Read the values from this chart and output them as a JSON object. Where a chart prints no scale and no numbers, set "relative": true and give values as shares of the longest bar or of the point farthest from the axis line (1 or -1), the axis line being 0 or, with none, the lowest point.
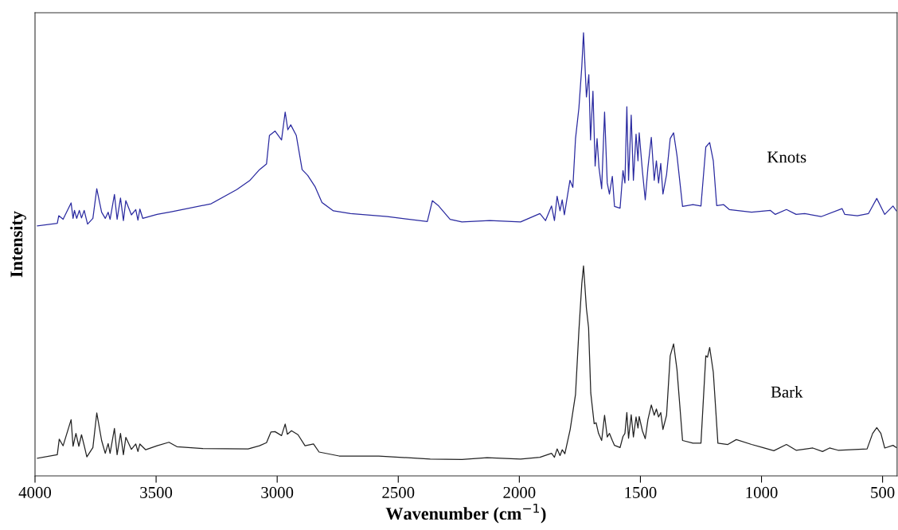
{
  "chart_data": {
    "type": "line",
    "relative": true,
    "xlabel": "Wavenumber (cm$^{−1}$)",
    "ylabel": "Intensity",
    "xlim": [
      4000,
      440
    ],
    "xticks": [
      4000,
      3500,
      3000,
      2500,
      2000,
      1500,
      1000,
      500
    ],
    "tick_labels": "x",
    "grid": false,
    "legend": false,
    "marker": "none",
    "line_style": "solid",
    "series": [
      {
        "name": "Knots",
        "color": "#2a2aa0",
        "x": [
          3990,
          3908,
          3902,
          3884,
          3851,
          3843,
          3837,
          3828,
          3817,
          3808,
          3797,
          3783,
          3761,
          3745,
          3725,
          3710,
          3698,
          3690,
          3672,
          3661,
          3647,
          3635,
          3625,
          3602,
          3584,
          3575,
          3567,
          3555,
          3496,
          3437,
          3273,
          3167,
          3114,
          3073,
          3044,
          3032,
          3009,
          2982,
          2967,
          2956,
          2944,
          2921,
          2897,
          2874,
          2844,
          2815,
          2768,
          2697,
          2545,
          2380,
          2359,
          2333,
          2286,
          2237,
          2122,
          1995,
          1915,
          1892,
          1867,
          1855,
          1844,
          1832,
          1823,
          1814,
          1791,
          1779,
          1768,
          1754,
          1742,
          1735,
          1723,
          1713,
          1706,
          1696,
          1687,
          1679,
          1671,
          1660,
          1648,
          1637,
          1628,
          1616,
          1607,
          1584,
          1572,
          1564,
          1556,
          1549,
          1538,
          1529,
          1518,
          1510,
          1505,
          1492,
          1480,
          1469,
          1455,
          1443,
          1434,
          1425,
          1416,
          1407,
          1392,
          1377,
          1363,
          1349,
          1326,
          1283,
          1250,
          1230,
          1214,
          1199,
          1185,
          1156,
          1133,
          1041,
          963,
          943,
          897,
          857,
          822,
          754,
          667,
          656,
          604,
          558,
          524,
          491,
          457,
          443
        ],
        "values": [
          0.564,
          0.57,
          0.587,
          0.579,
          0.616,
          0.581,
          0.599,
          0.581,
          0.599,
          0.582,
          0.599,
          0.568,
          0.581,
          0.648,
          0.595,
          0.581,
          0.595,
          0.579,
          0.635,
          0.579,
          0.627,
          0.576,
          0.621,
          0.589,
          0.601,
          0.577,
          0.602,
          0.581,
          0.59,
          0.596,
          0.614,
          0.646,
          0.666,
          0.691,
          0.704,
          0.768,
          0.778,
          0.758,
          0.821,
          0.781,
          0.792,
          0.768,
          0.691,
          0.678,
          0.653,
          0.617,
          0.598,
          0.592,
          0.585,
          0.574,
          0.621,
          0.609,
          0.579,
          0.573,
          0.576,
          0.573,
          0.592,
          0.576,
          0.609,
          0.576,
          0.631,
          0.598,
          0.623,
          0.589,
          0.667,
          0.651,
          0.761,
          0.83,
          0.924,
          1.0,
          0.855,
          0.905,
          0.758,
          0.868,
          0.699,
          0.761,
          0.695,
          0.648,
          0.821,
          0.661,
          0.636,
          0.676,
          0.608,
          0.604,
          0.689,
          0.661,
          0.833,
          0.667,
          0.814,
          0.667,
          0.771,
          0.711,
          0.774,
          0.689,
          0.623,
          0.695,
          0.764,
          0.667,
          0.711,
          0.661,
          0.705,
          0.636,
          0.68,
          0.761,
          0.774,
          0.723,
          0.608,
          0.612,
          0.609,
          0.742,
          0.752,
          0.711,
          0.61,
          0.612,
          0.601,
          0.595,
          0.599,
          0.59,
          0.601,
          0.59,
          0.592,
          0.585,
          0.603,
          0.59,
          0.587,
          0.592,
          0.626,
          0.59,
          0.609,
          0.598
        ]
      },
      {
        "name": "Bark",
        "color": "#222222",
        "x": [
          3990,
          3908,
          3900,
          3884,
          3851,
          3843,
          3831,
          3819,
          3808,
          3795,
          3786,
          3761,
          3745,
          3725,
          3710,
          3698,
          3690,
          3672,
          3661,
          3647,
          3635,
          3625,
          3602,
          3584,
          3575,
          3567,
          3543,
          3496,
          3447,
          3414,
          3308,
          3120,
          3073,
          3044,
          3026,
          3009,
          2982,
          2967,
          2958,
          2941,
          2914,
          2885,
          2850,
          2827,
          2744,
          2580,
          2368,
          2237,
          2133,
          1995,
          1915,
          1867,
          1855,
          1844,
          1832,
          1823,
          1812,
          1790,
          1768,
          1754,
          1742,
          1735,
          1723,
          1714,
          1705,
          1691,
          1683,
          1673,
          1660,
          1648,
          1637,
          1628,
          1616,
          1607,
          1584,
          1572,
          1564,
          1556,
          1549,
          1538,
          1529,
          1518,
          1510,
          1505,
          1492,
          1480,
          1469,
          1455,
          1443,
          1434,
          1425,
          1416,
          1407,
          1392,
          1377,
          1363,
          1349,
          1326,
          1283,
          1250,
          1230,
          1223,
          1214,
          1199,
          1180,
          1139,
          1104,
          1041,
          995,
          949,
          897,
          857,
          788,
          748,
          719,
          684,
          564,
          541,
          524,
          507,
          491,
          457,
          443
        ],
        "values": [
          0.04,
          0.048,
          0.083,
          0.068,
          0.127,
          0.067,
          0.096,
          0.067,
          0.093,
          0.064,
          0.043,
          0.064,
          0.142,
          0.08,
          0.051,
          0.073,
          0.051,
          0.107,
          0.048,
          0.096,
          0.048,
          0.087,
          0.06,
          0.072,
          0.055,
          0.072,
          0.059,
          0.068,
          0.076,
          0.066,
          0.062,
          0.061,
          0.068,
          0.075,
          0.099,
          0.1,
          0.091,
          0.117,
          0.094,
          0.102,
          0.093,
          0.068,
          0.072,
          0.054,
          0.045,
          0.045,
          0.038,
          0.037,
          0.041,
          0.038,
          0.042,
          0.051,
          0.042,
          0.061,
          0.046,
          0.059,
          0.05,
          0.105,
          0.184,
          0.328,
          0.434,
          0.474,
          0.378,
          0.334,
          0.187,
          0.118,
          0.12,
          0.096,
          0.08,
          0.137,
          0.088,
          0.096,
          0.08,
          0.069,
          0.064,
          0.089,
          0.096,
          0.143,
          0.085,
          0.138,
          0.088,
          0.133,
          0.108,
          0.134,
          0.102,
          0.084,
          0.127,
          0.16,
          0.137,
          0.151,
          0.133,
          0.143,
          0.105,
          0.137,
          0.271,
          0.298,
          0.24,
          0.08,
          0.074,
          0.074,
          0.271,
          0.268,
          0.29,
          0.234,
          0.074,
          0.071,
          0.082,
          0.071,
          0.064,
          0.057,
          0.071,
          0.058,
          0.063,
          0.055,
          0.063,
          0.058,
          0.061,
          0.096,
          0.109,
          0.096,
          0.063,
          0.069,
          0.064
        ]
      }
    ]
  }
}
